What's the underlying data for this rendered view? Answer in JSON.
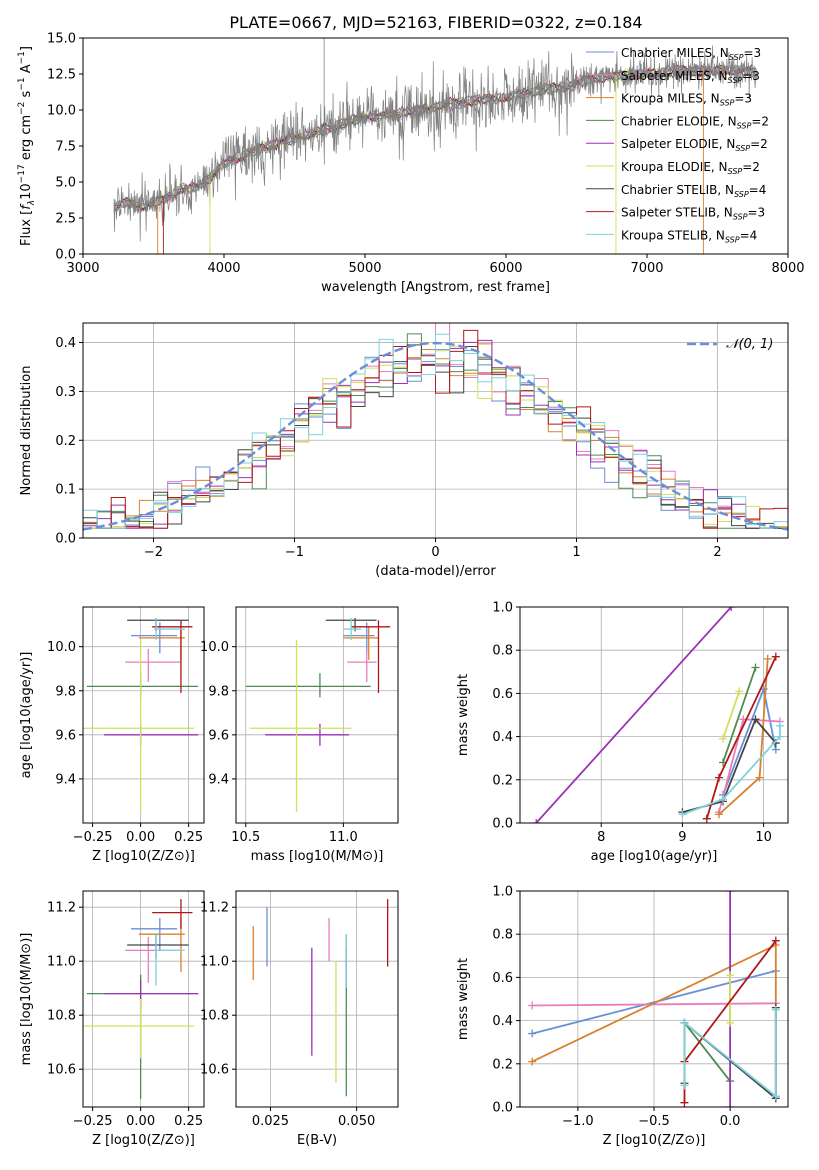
{
  "figure": {
    "title": "PLATE=0667, MJD=52163, FIBERID=0322, z=0.184"
  },
  "colors": {
    "Chabrier MILES": "#6a8fd6",
    "Salpeter MILES": "#e87cbf",
    "Kroupa MILES": "#d9812e",
    "Chabrier ELODIE": "#4e8a50",
    "Salpeter ELODIE": "#9b33b5",
    "Kroupa ELODIE": "#d2e05a",
    "Chabrier STELIB": "#444444",
    "Salpeter STELIB": "#b01818",
    "Kroupa STELIB": "#7fd1dc",
    "data": "#808080",
    "normal": "#6a8fd6"
  },
  "chart_data": [
    {
      "id": "spectrum",
      "type": "line",
      "ylabel": "Flux [f_λ10^{-17} erg cm^{-2} s^{-1} A^{-1}]",
      "xlabel": "wavelength [Angstrom, rest frame]",
      "xlim": [
        3000,
        8000
      ],
      "ylim": [
        0,
        15
      ],
      "xticks": [
        "3000",
        "4000",
        "5000",
        "6000",
        "7000",
        "8000"
      ],
      "yticks": [
        "0.0",
        "2.5",
        "5.0",
        "7.5",
        "10.0",
        "12.5",
        "15.0"
      ],
      "legend_position": "right",
      "legend": [
        {
          "name": "Chabrier MILES",
          "nssp": "3"
        },
        {
          "name": "Salpeter MILES",
          "nssp": "3"
        },
        {
          "name": "Kroupa MILES",
          "nssp": "3"
        },
        {
          "name": "Chabrier ELODIE",
          "nssp": "2"
        },
        {
          "name": "Salpeter ELODIE",
          "nssp": "2"
        },
        {
          "name": "Kroupa ELODIE",
          "nssp": "2"
        },
        {
          "name": "Chabrier STELIB",
          "nssp": "4"
        },
        {
          "name": "Salpeter STELIB",
          "nssp": "3"
        },
        {
          "name": "Kroupa STELIB",
          "nssp": "4"
        }
      ],
      "continuum": [
        [
          3220,
          3.2
        ],
        [
          3300,
          3.6
        ],
        [
          3400,
          3.3
        ],
        [
          3500,
          3.5
        ],
        [
          3600,
          4.0
        ],
        [
          3700,
          4.5
        ],
        [
          3800,
          4.6
        ],
        [
          3900,
          5.2
        ],
        [
          4000,
          6.3
        ],
        [
          4200,
          7.1
        ],
        [
          4400,
          7.8
        ],
        [
          4600,
          8.3
        ],
        [
          4800,
          8.9
        ],
        [
          5000,
          9.5
        ],
        [
          5200,
          9.7
        ],
        [
          5400,
          10.0
        ],
        [
          5600,
          10.4
        ],
        [
          5800,
          10.7
        ],
        [
          6000,
          10.9
        ],
        [
          6200,
          11.3
        ],
        [
          6400,
          11.6
        ],
        [
          6600,
          12.2
        ],
        [
          6800,
          12.4
        ],
        [
          7000,
          12.5
        ],
        [
          7200,
          12.7
        ],
        [
          7400,
          12.7
        ],
        [
          7600,
          12.8
        ],
        [
          7780,
          12.6
        ]
      ],
      "spikes": [
        [
          4710,
          15.0
        ]
      ]
    },
    {
      "id": "residuals",
      "type": "bar",
      "xlabel": "(data-model)/error",
      "ylabel": "Normed distribution",
      "xlim": [
        -2.5,
        2.5
      ],
      "ylim": [
        0,
        0.44
      ],
      "xticks": [
        "−2",
        "−1",
        "0",
        "1",
        "2"
      ],
      "yticks": [
        "0.0",
        "0.1",
        "0.2",
        "0.3",
        "0.4"
      ],
      "legend_position": "top-right",
      "legend": [
        {
          "name": "𝒩(0, 1)"
        }
      ],
      "bin_edges_start": -2.5,
      "bin_width": 0.1,
      "normal_pdf": {
        "mean": 0,
        "sigma": 1
      }
    },
    {
      "id": "age_vs_z",
      "type": "scatter",
      "xlabel": "Z [log10(Z/Z⊙)]",
      "ylabel": "age [log10(age/yr)]",
      "xlim": [
        -0.3,
        0.33
      ],
      "ylim": [
        9.2,
        10.18
      ],
      "xticks": [
        "−0.25",
        "0.00",
        "0.25"
      ],
      "yticks": [
        "9.4",
        "9.6",
        "9.8",
        "10.0"
      ],
      "points": [
        {
          "m": "Chabrier MILES",
          "x": 0.1,
          "y": 10.05,
          "ex": [
            0.15,
            0.09
          ],
          "ey": [
            0.08,
            0.06
          ]
        },
        {
          "m": "Salpeter MILES",
          "x": 0.04,
          "y": 9.93,
          "ex": [
            0.12,
            0.17
          ],
          "ey": [
            0.09,
            0.06
          ]
        },
        {
          "m": "Kroupa MILES",
          "x": 0.21,
          "y": 10.04,
          "ex": [
            0.22,
            0.02
          ],
          "ey": [
            0.1,
            0.05
          ]
        },
        {
          "m": "Chabrier ELODIE",
          "x": 0.0,
          "y": 9.82,
          "ex": [
            0.28,
            0.3
          ],
          "ey": [
            0.05,
            0.06
          ]
        },
        {
          "m": "Salpeter ELODIE",
          "x": 0.0,
          "y": 9.6,
          "ex": [
            0.19,
            0.3
          ],
          "ey": [
            0.05,
            0.05
          ]
        },
        {
          "m": "Kroupa ELODIE",
          "x": 0.0,
          "y": 9.63,
          "ex": [
            0.3,
            0.28
          ],
          "ey": [
            0.38,
            0.4
          ]
        },
        {
          "m": "Chabrier STELIB",
          "x": 0.08,
          "y": 10.12,
          "ex": [
            0.15,
            0.17
          ],
          "ey": [
            0.05,
            0.01
          ]
        },
        {
          "m": "Salpeter STELIB",
          "x": 0.21,
          "y": 10.09,
          "ex": [
            0.15,
            0.06
          ],
          "ey": [
            0.3,
            0.03
          ]
        },
        {
          "m": "Kroupa STELIB",
          "x": 0.08,
          "y": 10.08,
          "ex": [
            0.01,
            0.15
          ],
          "ey": [
            0.05,
            0.05
          ]
        }
      ]
    },
    {
      "id": "age_vs_mass",
      "type": "scatter",
      "xlabel": "mass [log10(M/M⊙)]",
      "ylabel": "",
      "xlim": [
        10.45,
        11.28
      ],
      "ylim": [
        9.2,
        10.18
      ],
      "xticks": [
        "10.5",
        "11.0"
      ],
      "yticks": [
        "9.4",
        "9.6",
        "9.8",
        "10.0"
      ],
      "points": [
        {
          "m": "Chabrier MILES",
          "x": 11.12,
          "y": 10.05,
          "ex": [
            0.12,
            0.04
          ],
          "ey": [
            0.08,
            0.06
          ]
        },
        {
          "m": "Salpeter MILES",
          "x": 11.12,
          "y": 9.93,
          "ex": [
            0.1,
            0.05
          ],
          "ey": [
            0.09,
            0.06
          ]
        },
        {
          "m": "Kroupa MILES",
          "x": 11.13,
          "y": 10.04,
          "ex": [
            0.13,
            0.05
          ],
          "ey": [
            0.1,
            0.05
          ]
        },
        {
          "m": "Chabrier ELODIE",
          "x": 10.88,
          "y": 9.82,
          "ex": [
            0.38,
            0.26
          ],
          "ey": [
            0.05,
            0.06
          ]
        },
        {
          "m": "Salpeter ELODIE",
          "x": 10.88,
          "y": 9.6,
          "ex": [
            0.28,
            0.15
          ],
          "ey": [
            0.05,
            0.05
          ]
        },
        {
          "m": "Kroupa ELODIE",
          "x": 10.76,
          "y": 9.63,
          "ex": [
            0.24,
            0.28
          ],
          "ey": [
            0.38,
            0.4
          ]
        },
        {
          "m": "Chabrier STELIB",
          "x": 11.06,
          "y": 10.12,
          "ex": [
            0.15,
            0.11
          ],
          "ey": [
            0.05,
            0.01
          ]
        },
        {
          "m": "Salpeter STELIB",
          "x": 11.18,
          "y": 10.09,
          "ex": [
            0.14,
            0.06
          ],
          "ey": [
            0.3,
            0.03
          ]
        },
        {
          "m": "Kroupa STELIB",
          "x": 11.04,
          "y": 10.08,
          "ex": [
            0.04,
            0.05
          ],
          "ey": [
            0.05,
            0.05
          ]
        }
      ]
    },
    {
      "id": "weight_vs_age",
      "type": "line",
      "xlabel": "age [log10(age/yr)]",
      "ylabel": "mass weight",
      "xlim": [
        7.0,
        10.3
      ],
      "ylim": [
        0,
        1.0
      ],
      "xticks": [
        "8",
        "9",
        "10"
      ],
      "yticks": [
        "0.0",
        "0.2",
        "0.4",
        "0.6",
        "0.8",
        "1.0"
      ],
      "series": [
        {
          "m": "Chabrier MILES",
          "x": [
            9.5,
            10.0,
            10.15
          ],
          "y": [
            0.13,
            0.62,
            0.34
          ]
        },
        {
          "m": "Salpeter MILES",
          "x": [
            9.45,
            9.75,
            10.2
          ],
          "y": [
            0.05,
            0.48,
            0.47
          ]
        },
        {
          "m": "Kroupa MILES",
          "x": [
            9.45,
            9.95,
            10.05
          ],
          "y": [
            0.04,
            0.21,
            0.76
          ]
        },
        {
          "m": "Chabrier ELODIE",
          "x": [
            9.5,
            9.9
          ],
          "y": [
            0.28,
            0.72
          ]
        },
        {
          "m": "Salpeter ELODIE",
          "x": [
            7.2,
            9.6
          ],
          "y": [
            0.0,
            1.0
          ]
        },
        {
          "m": "Kroupa ELODIE",
          "x": [
            9.5,
            9.7
          ],
          "y": [
            0.39,
            0.61
          ]
        },
        {
          "m": "Chabrier STELIB",
          "x": [
            9.0,
            9.5,
            9.9,
            10.15
          ],
          "y": [
            0.05,
            0.1,
            0.48,
            0.37
          ]
        },
        {
          "m": "Salpeter STELIB",
          "x": [
            9.3,
            9.45,
            10.15
          ],
          "y": [
            0.02,
            0.21,
            0.77
          ]
        },
        {
          "m": "Kroupa STELIB",
          "x": [
            9.0,
            9.5,
            10.2,
            10.2
          ],
          "y": [
            0.04,
            0.11,
            0.4,
            0.45
          ]
        }
      ]
    },
    {
      "id": "mass_vs_z",
      "type": "scatter",
      "xlabel": "Z [log10(Z/Z⊙)]",
      "ylabel": "mass [log10(M/M⊙)]",
      "xlim": [
        -0.3,
        0.33
      ],
      "ylim": [
        10.46,
        11.26
      ],
      "xticks": [
        "−0.25",
        "0.00",
        "0.25"
      ],
      "yticks": [
        "10.6",
        "10.8",
        "11.0",
        "11.2"
      ],
      "points": [
        {
          "m": "Chabrier MILES",
          "x": 0.1,
          "y": 11.12,
          "ex": [
            0.15,
            0.09
          ],
          "ey": [
            0.08,
            0.04
          ]
        },
        {
          "m": "Salpeter MILES",
          "x": 0.04,
          "y": 11.04,
          "ex": [
            0.12,
            0.17
          ],
          "ey": [
            0.12,
            0.05
          ]
        },
        {
          "m": "Kroupa MILES",
          "x": 0.21,
          "y": 11.1,
          "ex": [
            0.22,
            0.02
          ],
          "ey": [
            0.14,
            0.06
          ]
        },
        {
          "m": "Chabrier ELODIE",
          "x": 0.0,
          "y": 10.88,
          "ex": [
            0.28,
            0.3
          ],
          "ey": [
            0.39,
            0.07
          ]
        },
        {
          "m": "Salpeter ELODIE",
          "x": 0.0,
          "y": 10.88,
          "ex": [
            0.19,
            0.3
          ],
          "ey": [
            0.05,
            0.05
          ]
        },
        {
          "m": "Kroupa ELODIE",
          "x": 0.0,
          "y": 10.76,
          "ex": [
            0.3,
            0.28
          ],
          "ey": [
            0.12,
            0.1
          ]
        },
        {
          "m": "Chabrier STELIB",
          "x": 0.08,
          "y": 11.06,
          "ex": [
            0.15,
            0.17
          ],
          "ey": [
            0.05,
            0.04
          ]
        },
        {
          "m": "Salpeter STELIB",
          "x": 0.21,
          "y": 11.18,
          "ex": [
            0.15,
            0.06
          ],
          "ey": [
            0.06,
            0.05
          ]
        },
        {
          "m": "Kroupa STELIB",
          "x": 0.08,
          "y": 11.04,
          "ex": [
            0.01,
            0.15
          ],
          "ey": [
            0.13,
            0.06
          ]
        }
      ]
    },
    {
      "id": "mass_vs_ebv",
      "type": "scatter",
      "xlabel": "E(B-V)",
      "ylabel": "",
      "xlim": [
        0.015,
        0.062
      ],
      "ylim": [
        10.46,
        11.26
      ],
      "xticks": [
        "0.025",
        "0.050"
      ],
      "yticks": [
        "10.6",
        "10.8",
        "11.0",
        "11.2"
      ],
      "points": [
        {
          "m": "Chabrier MILES",
          "x": 0.024,
          "y": 11.1,
          "ey": [
            0.12,
            0.1
          ]
        },
        {
          "m": "Salpeter MILES",
          "x": 0.042,
          "y": 11.1,
          "ey": [
            0.1,
            0.06
          ]
        },
        {
          "m": "Kroupa MILES",
          "x": 0.02,
          "y": 11.05,
          "ey": [
            0.12,
            0.08
          ]
        },
        {
          "m": "Chabrier ELODIE",
          "x": 0.047,
          "y": 10.8,
          "ey": [
            0.3,
            0.3
          ]
        },
        {
          "m": "Salpeter ELODIE",
          "x": 0.037,
          "y": 10.85,
          "ey": [
            0.2,
            0.2
          ]
        },
        {
          "m": "Kroupa ELODIE",
          "x": 0.044,
          "y": 10.8,
          "ey": [
            0.25,
            0.2
          ]
        },
        {
          "m": "Chabrier STELIB",
          "x": 0.047,
          "y": 10.95,
          "ey": [
            0.05,
            0.1
          ]
        },
        {
          "m": "Salpeter STELIB",
          "x": 0.059,
          "y": 11.1,
          "ey": [
            0.12,
            0.13
          ]
        },
        {
          "m": "Kroupa STELIB",
          "x": 0.047,
          "y": 11.05,
          "ey": [
            0.15,
            0.05
          ]
        }
      ]
    },
    {
      "id": "weight_vs_z",
      "type": "line",
      "xlabel": "Z [log10(Z/Z⊙)]",
      "ylabel": "mass weight",
      "xlim": [
        -1.38,
        0.38
      ],
      "ylim": [
        0,
        1.0
      ],
      "xticks": [
        "−1.0",
        "−0.5",
        "0.0"
      ],
      "yticks": [
        "0.0",
        "0.2",
        "0.4",
        "0.6",
        "0.8",
        "1.0"
      ],
      "series": [
        {
          "m": "Chabrier MILES",
          "x": [
            -1.3,
            0.3
          ],
          "y": [
            0.34,
            0.63
          ]
        },
        {
          "m": "Salpeter MILES",
          "x": [
            -1.3,
            0.3
          ],
          "y": [
            0.47,
            0.48
          ]
        },
        {
          "m": "Kroupa MILES",
          "x": [
            -1.3,
            0.3,
            0.3
          ],
          "y": [
            0.21,
            0.75,
            0.05
          ]
        },
        {
          "m": "Chabrier ELODIE",
          "x": [
            -0.3,
            0.0
          ],
          "y": [
            0.39,
            0.12
          ]
        },
        {
          "m": "Salpeter ELODIE",
          "x": [
            0.0,
            0.0
          ],
          "y": [
            1.0,
            0.0
          ]
        },
        {
          "m": "Kroupa ELODIE",
          "x": [
            0.0,
            0.0
          ],
          "y": [
            0.61,
            0.39
          ]
        },
        {
          "m": "Chabrier STELIB",
          "x": [
            -0.3,
            -0.3,
            0.3,
            0.3
          ],
          "y": [
            0.11,
            0.39,
            0.04,
            0.46
          ]
        },
        {
          "m": "Salpeter STELIB",
          "x": [
            -0.3,
            -0.3,
            0.3
          ],
          "y": [
            0.02,
            0.21,
            0.77
          ]
        },
        {
          "m": "Kroupa STELIB",
          "x": [
            -0.3,
            -0.3,
            0.3,
            0.3
          ],
          "y": [
            0.1,
            0.39,
            0.05,
            0.45
          ]
        }
      ]
    }
  ]
}
